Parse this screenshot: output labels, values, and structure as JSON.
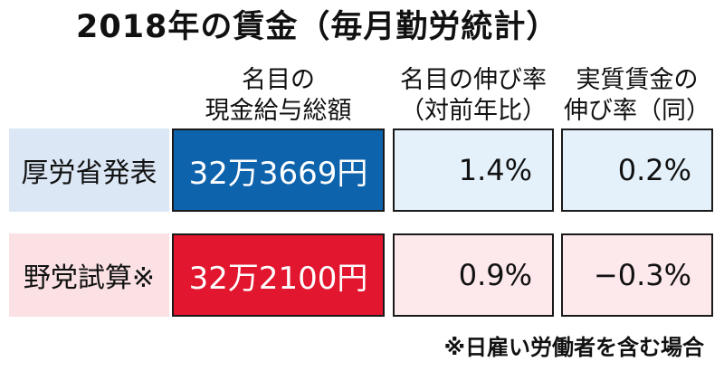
{
  "title": "2018年の賃金（毎月勤労統計）",
  "headers": [
    {
      "line1": "名目の",
      "line2": "現金給与総額"
    },
    {
      "line1": "名目の伸び率",
      "line2": "（対前年比）"
    },
    {
      "line1": "実質賃金の",
      "line2": "伸び率（同）"
    }
  ],
  "rows": [
    {
      "label": "厚労省発表",
      "amount": "32万3669円",
      "nominal_growth": "1.4%",
      "real_growth": "0.2%"
    },
    {
      "label": "野党試算※",
      "amount": "32万2100円",
      "nominal_growth": "0.9%",
      "real_growth": "−0.3%"
    }
  ],
  "footnote": "※日雇い労働者を含む場合",
  "colors": {
    "ministry_amount": "#0e63ad",
    "opposition_amount": "#e2162e",
    "ministry_label_bg": "#dbe7f5",
    "opposition_label_bg": "#fbe1e4"
  }
}
